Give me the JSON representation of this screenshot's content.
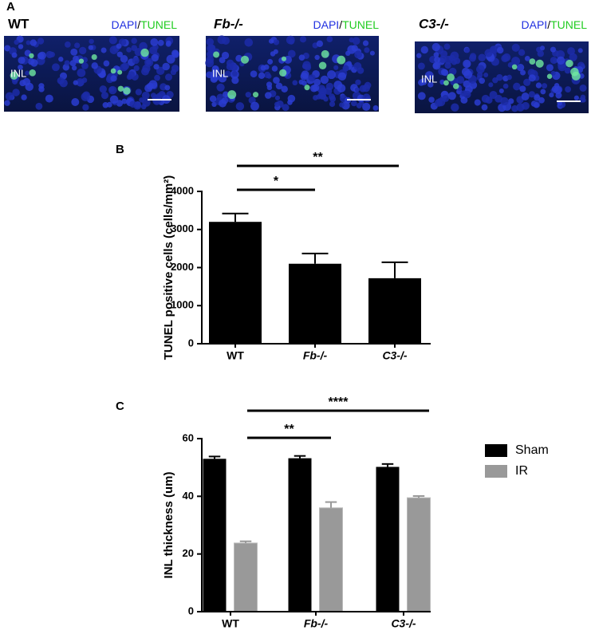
{
  "panel_a": {
    "label": "A",
    "region": "INL",
    "images": [
      {
        "title": "WT",
        "stain_1": "DAPI",
        "separator": "/",
        "stain_2": "TUNEL"
      },
      {
        "title": "Fb-/-",
        "stain_1": "DAPI",
        "separator": "/",
        "stain_2": "TUNEL"
      },
      {
        "title": "C3-/-",
        "stain_1": "DAPI",
        "separator": "/",
        "stain_2": "TUNEL"
      }
    ]
  },
  "chart_data": [
    {
      "type": "bar",
      "panel_label": "B",
      "y_label": "TUNEL positive cells (cells/mm²)",
      "categories": [
        "WT",
        "Fb-/-",
        "C3-/-"
      ],
      "values": [
        3200,
        2100,
        1720
      ],
      "errors": [
        220,
        270,
        420
      ],
      "color": "#000000",
      "ylim": [
        0,
        4000
      ],
      "yticks": [
        0,
        1000,
        2000,
        3000,
        4000
      ],
      "annotations": [
        "*",
        "**"
      ]
    },
    {
      "type": "bar",
      "panel_label": "C",
      "y_label": "INL thickness (um)",
      "categories": [
        "WT",
        "Fb-/-",
        "C3-/-"
      ],
      "series": [
        {
          "name": "Sham",
          "color": "#000000",
          "values": [
            53,
            53.2,
            50.2
          ],
          "errors": [
            0.8,
            0.8,
            1.0
          ]
        },
        {
          "name": "IR",
          "color": "#999999",
          "values": [
            23.8,
            36,
            39.5
          ],
          "errors": [
            0.6,
            2.0,
            0.6
          ]
        }
      ],
      "ylim": [
        0,
        60
      ],
      "yticks": [
        0,
        20,
        40,
        60
      ],
      "annotations": [
        "**",
        "****"
      ]
    }
  ]
}
